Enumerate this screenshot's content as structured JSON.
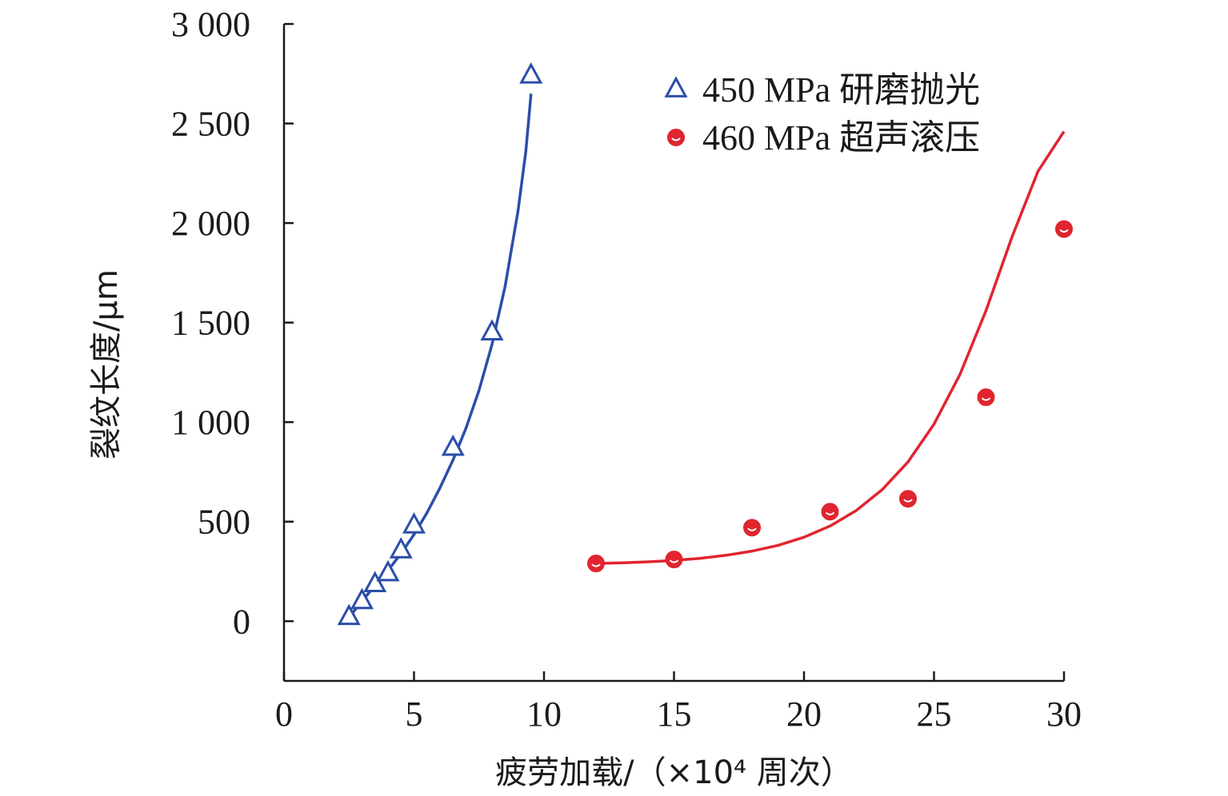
{
  "chart_data": {
    "type": "scatter",
    "xlabel": "疲劳加载/（×10⁴ 周次）",
    "ylabel": "裂纹长度/μm",
    "xlim": [
      0,
      30
    ],
    "ylim": [
      -300,
      3000
    ],
    "x_ticks": [
      0,
      5,
      10,
      15,
      20,
      25,
      30
    ],
    "y_ticks": [
      0,
      500,
      1000,
      1500,
      2000,
      2500,
      3000
    ],
    "x_tick_labels": [
      "0",
      "5",
      "10",
      "15",
      "20",
      "25",
      "30"
    ],
    "y_tick_labels": [
      "0",
      "500",
      "1 000",
      "1 500",
      "2 000",
      "2 500",
      "3 000"
    ],
    "legend_position": "top-right",
    "grid": false,
    "series": [
      {
        "name": "450 MPa 研磨抛光",
        "marker": "triangle",
        "color": "#2b4ea8",
        "points": [
          [
            2.5,
            20
          ],
          [
            3.0,
            100
          ],
          [
            3.5,
            185
          ],
          [
            4.0,
            240
          ],
          [
            4.5,
            355
          ],
          [
            5.0,
            480
          ],
          [
            6.5,
            870
          ],
          [
            8.0,
            1450
          ],
          [
            9.5,
            2740
          ]
        ],
        "fit": [
          [
            2.5,
            20
          ],
          [
            3.0,
            100
          ],
          [
            3.5,
            180
          ],
          [
            4.0,
            255
          ],
          [
            4.5,
            340
          ],
          [
            5.0,
            435
          ],
          [
            5.5,
            545
          ],
          [
            6.0,
            670
          ],
          [
            6.5,
            810
          ],
          [
            7.0,
            970
          ],
          [
            7.5,
            1160
          ],
          [
            8.0,
            1390
          ],
          [
            8.5,
            1680
          ],
          [
            9.0,
            2060
          ],
          [
            9.3,
            2360
          ],
          [
            9.5,
            2650
          ]
        ]
      },
      {
        "name": "460 MPa 超声滚压",
        "marker": "circle",
        "color": "#e02530",
        "points": [
          [
            12,
            290
          ],
          [
            15,
            310
          ],
          [
            18,
            470
          ],
          [
            21,
            550
          ],
          [
            24,
            615
          ],
          [
            27,
            1125
          ],
          [
            30,
            1970
          ]
        ],
        "fit": [
          [
            12,
            290
          ],
          [
            13,
            293
          ],
          [
            14,
            298
          ],
          [
            15,
            305
          ],
          [
            16,
            316
          ],
          [
            17,
            331
          ],
          [
            18,
            352
          ],
          [
            19,
            381
          ],
          [
            20,
            422
          ],
          [
            21,
            478
          ],
          [
            22,
            555
          ],
          [
            23,
            660
          ],
          [
            24,
            800
          ],
          [
            25,
            990
          ],
          [
            26,
            1240
          ],
          [
            27,
            1560
          ],
          [
            28,
            1930
          ],
          [
            29,
            2260
          ],
          [
            30,
            2460
          ]
        ]
      }
    ]
  }
}
